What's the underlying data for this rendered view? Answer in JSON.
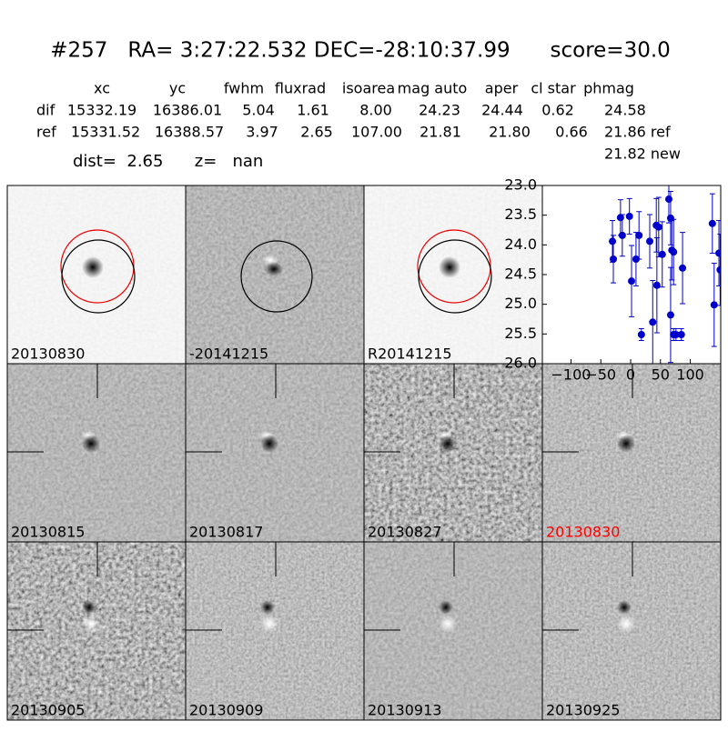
{
  "header": {
    "title": "#257   RA= 3:27:22.532 DEC=-28:10:37.99      score=30.0"
  },
  "table": {
    "columns": [
      "xc",
      "yc",
      "fwhm",
      "fluxrad",
      "isoarea",
      "mag auto",
      "aper",
      "cl star",
      "phmag"
    ],
    "rows": [
      [
        "dif",
        "15332.19",
        "16386.01",
        "5.04",
        "1.61",
        "8.00",
        "24.23",
        "24.44",
        "0.62",
        "24.58"
      ],
      [
        "ref",
        "15331.52",
        "16388.57",
        "3.97",
        "2.65",
        "107.00",
        "21.81",
        "21.80",
        "0.66",
        "21.86 ref"
      ]
    ],
    "extra": "21.82 new",
    "dist_line": "dist=  2.65      z=   nan"
  },
  "stamps": [
    {
      "label": "20130830"
    },
    {
      "label": "-20141215"
    },
    {
      "label": "R20141215"
    },
    {
      "label": "20130815"
    },
    {
      "label": "20130817"
    },
    {
      "label": "20130827"
    },
    {
      "label": "20130830",
      "label_color": "#ff0000"
    },
    {
      "label": "20130905"
    },
    {
      "label": "20130909"
    },
    {
      "label": "20130913"
    },
    {
      "label": "20130925"
    }
  ],
  "chart_data": {
    "type": "scatter",
    "color": "#0000cc",
    "y_inverted": true,
    "xlim": [
      -148,
      151
    ],
    "ylim": [
      23.0,
      26.0
    ],
    "xticks": [
      {
        "value": -100,
        "label": "−100"
      },
      {
        "value": -50,
        "label": "−50"
      },
      0,
      50,
      100
    ],
    "yticks": [
      {
        "value": 23.0,
        "label": "23.0"
      },
      {
        "value": 23.5,
        "label": "23.5"
      },
      {
        "value": 24.0,
        "label": "24.0"
      },
      {
        "value": 24.5,
        "label": "24.5"
      },
      {
        "value": 25.0,
        "label": "25.0"
      },
      {
        "value": 25.5,
        "label": "25.5"
      },
      {
        "value": 26.0,
        "label": "26.0"
      }
    ],
    "series": [
      {
        "x": [
          -30.5,
          -29,
          -17,
          -14,
          -2,
          1.5,
          9,
          14,
          18,
          32,
          37,
          43,
          44,
          47,
          53,
          64,
          67,
          67,
          69,
          72,
          72,
          76,
          85,
          87,
          137,
          140,
          148,
          150
        ],
        "values": [
          23.94,
          24.24,
          23.54,
          23.84,
          23.52,
          24.61,
          24.24,
          23.84,
          25.51,
          23.94,
          25.3,
          23.67,
          24.68,
          23.7,
          24.16,
          23.23,
          23.55,
          25.18,
          24.09,
          24.12,
          25.51,
          25.51,
          25.51,
          24.39,
          23.64,
          25.01,
          24.14,
          24.42
        ],
        "errors": [
          0.35,
          0.4,
          0.3,
          0.35,
          0.3,
          0.6,
          0.45,
          0.4,
          0.1,
          0.45,
          0.7,
          0.45,
          0.8,
          0.5,
          0.55,
          0.4,
          0.45,
          0.8,
          0.5,
          0.55,
          0.1,
          0.1,
          0.1,
          0.6,
          0.5,
          0.7,
          0.55,
          0.6
        ]
      }
    ]
  }
}
